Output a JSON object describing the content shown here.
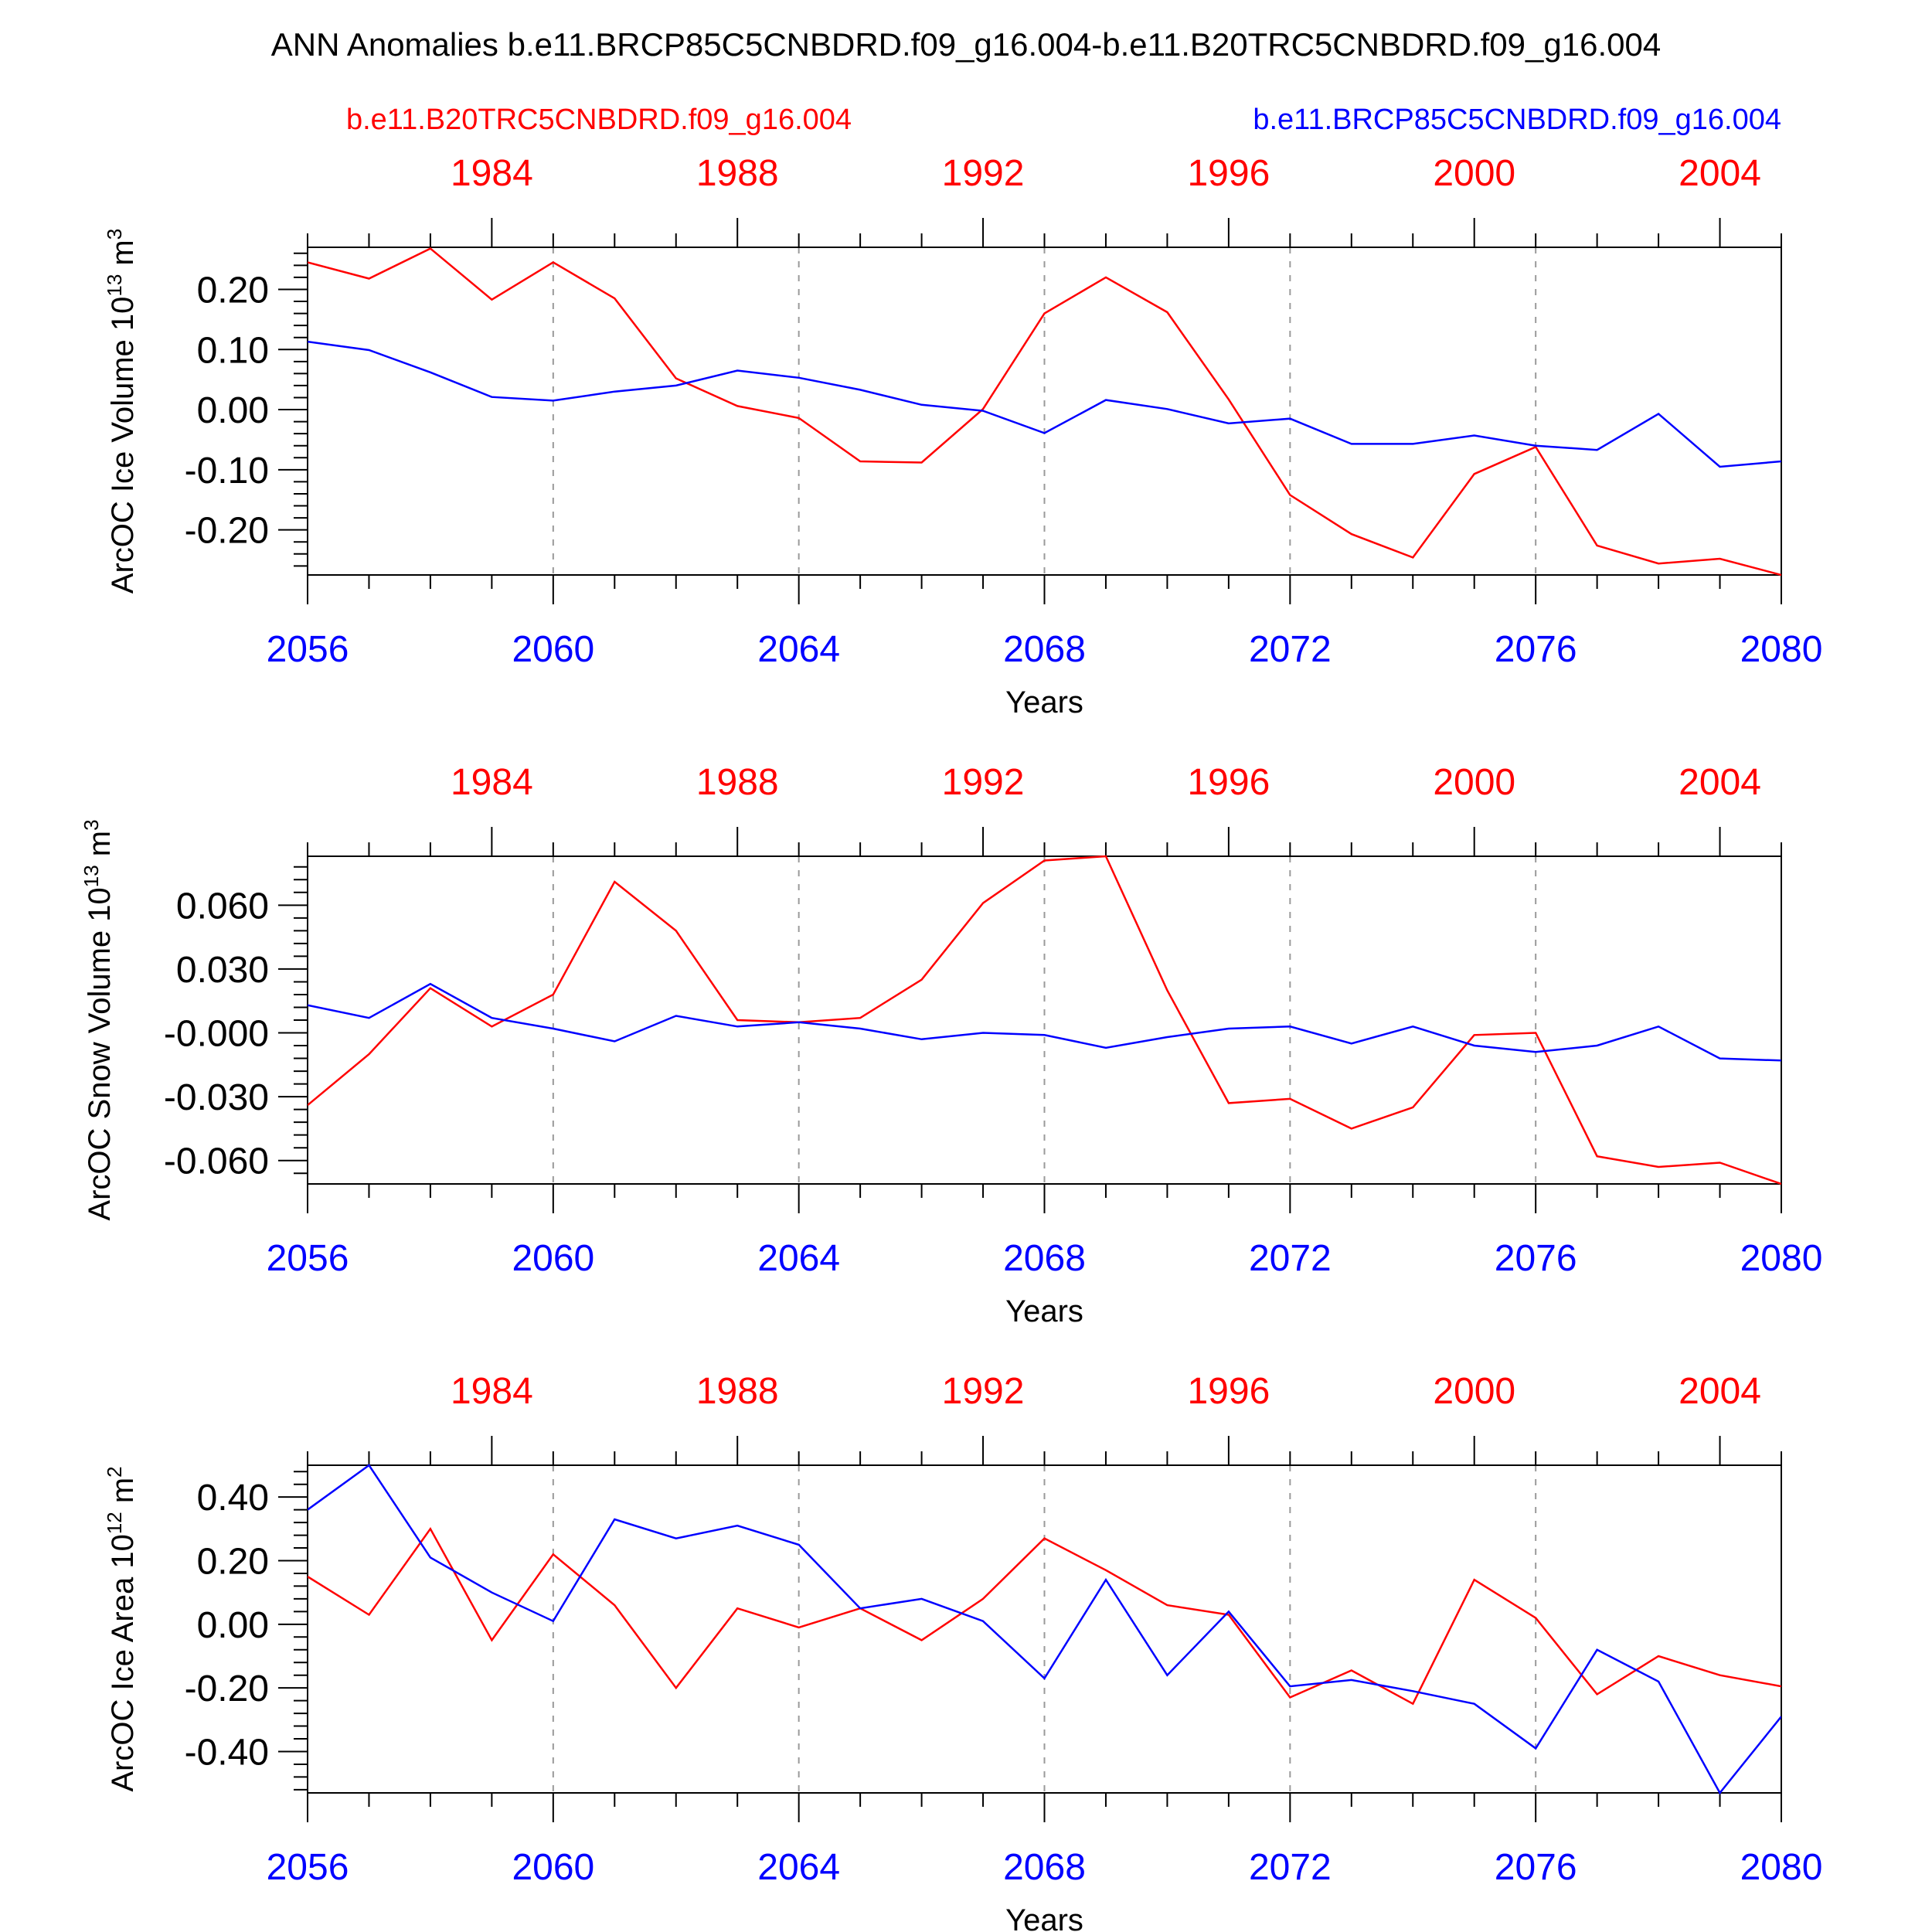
{
  "title": "ANN Anomalies b.e11.BRCP85C5CNBDRD.f09_g16.004-b.e11.B20TRC5CNBDRD.f09_g16.004",
  "legend": {
    "left": "b.e11.B20TRC5CNBDRD.f09_g16.004",
    "right": "b.e11.BRCP85C5CNBDRD.f09_g16.004"
  },
  "colors": {
    "ref": "#ff0000",
    "test": "#0000ff",
    "axis": "#000000",
    "grid": "#9a9a9a"
  },
  "xlabel": "Years",
  "bottom_axis": {
    "min": 2056,
    "max": 2080,
    "ticks": [
      "2056",
      "2060",
      "2064",
      "2068",
      "2072",
      "2076",
      "2080"
    ]
  },
  "top_axis": {
    "offset_years": -75,
    "ticks": [
      "1984",
      "1988",
      "1992",
      "1996",
      "2000",
      "2004"
    ]
  },
  "chart_data": [
    {
      "type": "line",
      "ylabel": "ArcOC Ice Volume 10",
      "ylabel_exp": "13",
      "ylabel_unit": " m",
      "ylabel_unit_exp": "3",
      "ylim": [
        -0.275,
        0.27
      ],
      "yticks": [
        "0.20",
        "0.10",
        "0.00",
        "-0.10",
        "-0.20"
      ],
      "yticks_values": [
        0.2,
        0.1,
        0.0,
        -0.1,
        -0.2
      ],
      "x": [
        2056,
        2057,
        2058,
        2059,
        2060,
        2061,
        2062,
        2063,
        2064,
        2065,
        2066,
        2067,
        2068,
        2069,
        2070,
        2071,
        2072,
        2073,
        2074,
        2075,
        2076,
        2077,
        2078,
        2079,
        2080
      ],
      "series": [
        {
          "name": "b.e11.B20TRC5CNBDRD.f09_g16.004",
          "color": "#ff0000",
          "values": [
            0.245,
            0.218,
            0.268,
            0.183,
            0.245,
            0.185,
            0.052,
            0.006,
            -0.014,
            -0.086,
            -0.088,
            0.001,
            0.16,
            0.22,
            0.162,
            0.017,
            -0.142,
            -0.207,
            -0.246,
            -0.107,
            -0.062,
            -0.226,
            -0.256,
            -0.248,
            -0.275
          ]
        },
        {
          "name": "b.e11.BRCP85C5CNBDRD.f09_g16.004",
          "color": "#0000ff",
          "values": [
            0.113,
            0.099,
            0.062,
            0.021,
            0.015,
            0.03,
            0.04,
            0.065,
            0.053,
            0.033,
            0.008,
            -0.002,
            -0.039,
            0.016,
            0.001,
            -0.023,
            -0.015,
            -0.057,
            -0.057,
            -0.043,
            -0.06,
            -0.067,
            -0.007,
            -0.095,
            -0.086
          ]
        }
      ]
    },
    {
      "type": "line",
      "ylabel": "ArcOC Snow Volume 10",
      "ylabel_exp": "13",
      "ylabel_unit": " m",
      "ylabel_unit_exp": "3",
      "ylim": [
        -0.071,
        0.083
      ],
      "yticks": [
        "0.060",
        "0.030",
        "-0.000",
        "-0.030",
        "-0.060"
      ],
      "yticks_values": [
        0.06,
        0.03,
        0.0,
        -0.03,
        -0.06
      ],
      "x": [
        2056,
        2057,
        2058,
        2059,
        2060,
        2061,
        2062,
        2063,
        2064,
        2065,
        2066,
        2067,
        2068,
        2069,
        2070,
        2071,
        2072,
        2073,
        2074,
        2075,
        2076,
        2077,
        2078,
        2079,
        2080
      ],
      "series": [
        {
          "name": "b.e11.B20TRC5CNBDRD.f09_g16.004",
          "color": "#ff0000",
          "values": [
            -0.034,
            -0.01,
            0.021,
            0.003,
            0.018,
            0.071,
            0.048,
            0.006,
            0.005,
            0.007,
            0.025,
            0.061,
            0.081,
            0.083,
            0.02,
            -0.033,
            -0.031,
            -0.045,
            -0.035,
            -0.001,
            0.0,
            -0.058,
            -0.063,
            -0.061,
            -0.071
          ]
        },
        {
          "name": "b.e11.BRCP85C5CNBDRD.f09_g16.004",
          "color": "#0000ff",
          "values": [
            0.013,
            0.007,
            0.023,
            0.007,
            0.002,
            -0.004,
            0.008,
            0.003,
            0.005,
            0.002,
            -0.003,
            -0.0,
            -0.001,
            -0.007,
            -0.002,
            0.002,
            0.003,
            -0.005,
            0.003,
            -0.006,
            -0.009,
            -0.006,
            0.003,
            -0.012,
            -0.013
          ]
        }
      ]
    },
    {
      "type": "line",
      "ylabel": "ArcOC Ice Area 10",
      "ylabel_exp": "12",
      "ylabel_unit": " m",
      "ylabel_unit_exp": "2",
      "ylim": [
        -0.53,
        0.5
      ],
      "yticks": [
        "0.40",
        "0.20",
        "0.00",
        "-0.20",
        "-0.40"
      ],
      "yticks_values": [
        0.4,
        0.2,
        0.0,
        -0.2,
        -0.4
      ],
      "x": [
        2056,
        2057,
        2058,
        2059,
        2060,
        2061,
        2062,
        2063,
        2064,
        2065,
        2066,
        2067,
        2068,
        2069,
        2070,
        2071,
        2072,
        2073,
        2074,
        2075,
        2076,
        2077,
        2078,
        2079,
        2080
      ],
      "series": [
        {
          "name": "b.e11.B20TRC5CNBDRD.f09_g16.004",
          "color": "#ff0000",
          "values": [
            0.15,
            0.03,
            0.3,
            -0.05,
            0.22,
            0.06,
            -0.2,
            0.05,
            -0.01,
            0.05,
            -0.05,
            0.08,
            0.27,
            0.17,
            0.06,
            0.03,
            -0.23,
            -0.145,
            -0.25,
            0.14,
            0.02,
            -0.22,
            -0.1,
            -0.16,
            -0.195
          ]
        },
        {
          "name": "b.e11.BRCP85C5CNBDRD.f09_g16.004",
          "color": "#0000ff",
          "values": [
            0.36,
            0.5,
            0.21,
            0.1,
            0.01,
            0.33,
            0.27,
            0.31,
            0.25,
            0.05,
            0.08,
            0.01,
            -0.17,
            0.14,
            -0.16,
            0.04,
            -0.195,
            -0.175,
            -0.21,
            -0.25,
            -0.39,
            -0.08,
            -0.18,
            -0.53,
            -0.29
          ]
        }
      ]
    }
  ]
}
